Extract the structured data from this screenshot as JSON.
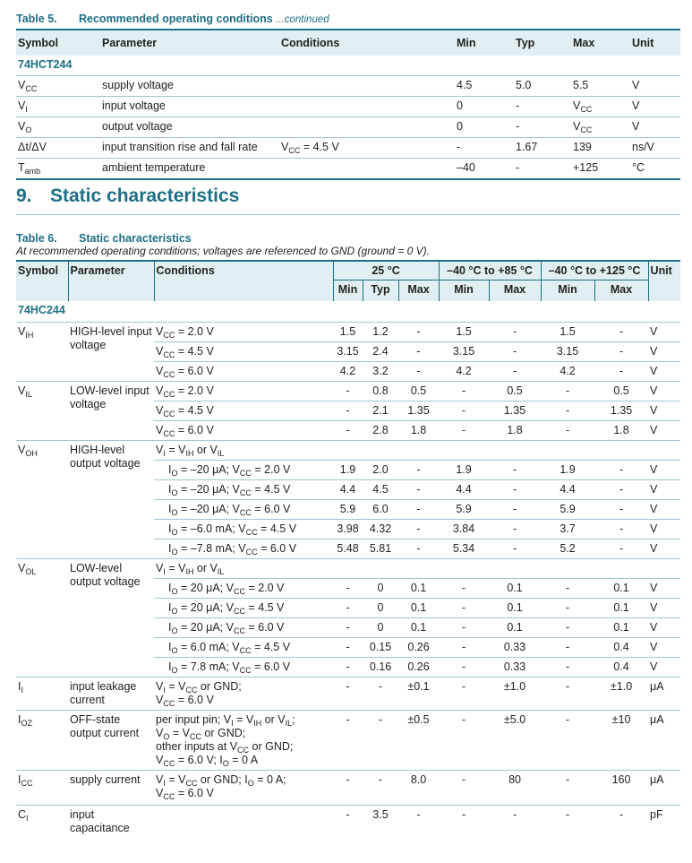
{
  "table5": {
    "number": "Table 5.",
    "title": "Recommended operating conditions",
    "continued": "...continued",
    "headers": [
      "Symbol",
      "Parameter",
      "Conditions",
      "Min",
      "Typ",
      "Max",
      "Unit"
    ],
    "group": "74HCT244",
    "rows": [
      {
        "sym": "V_{CC}",
        "param": "supply voltage",
        "cond": "",
        "min": "4.5",
        "typ": "5.0",
        "max": "5.5",
        "unit": "V"
      },
      {
        "sym": "V_{I}",
        "param": "input voltage",
        "cond": "",
        "min": "0",
        "typ": "-",
        "max": "V_{CC}",
        "unit": "V"
      },
      {
        "sym": "V_{O}",
        "param": "output voltage",
        "cond": "",
        "min": "0",
        "typ": "-",
        "max": "V_{CC}",
        "unit": "V"
      },
      {
        "sym": "Δt/ΔV",
        "param": "input transition rise and fall rate",
        "cond": "V_{CC} = 4.5 V",
        "min": "-",
        "typ": "1.67",
        "max": "139",
        "unit": "ns/V"
      },
      {
        "sym": "T_{amb}",
        "param": "ambient temperature",
        "cond": "",
        "min": "–40",
        "typ": "-",
        "max": "+125",
        "unit": "°C"
      }
    ]
  },
  "section": {
    "number": "9.",
    "title": "Static characteristics"
  },
  "table6": {
    "number": "Table 6.",
    "title": "Static characteristics",
    "note": "At recommended operating conditions; voltages are referenced to GND (ground = 0 V).",
    "headers": {
      "symbol": "Symbol",
      "parameter": "Parameter",
      "conditions": "Conditions",
      "t25": "25 °C",
      "t85": "–40 °C to +85 °C",
      "t125": "–40 °C to +125 °C",
      "unit": "Unit",
      "min": "Min",
      "typ": "Typ",
      "max": "Max"
    },
    "group": "74HC244",
    "blocks": [
      {
        "sym": "V_{IH}",
        "param": "HIGH-level input voltage",
        "rows": [
          {
            "cond": "V_{CC} = 2.0 V",
            "v": [
              "1.5",
              "1.2",
              "-",
              "1.5",
              "-",
              "1.5",
              "-"
            ],
            "unit": "V"
          },
          {
            "cond": "V_{CC} = 4.5 V",
            "v": [
              "3.15",
              "2.4",
              "-",
              "3.15",
              "-",
              "3.15",
              "-"
            ],
            "unit": "V"
          },
          {
            "cond": "V_{CC} = 6.0 V",
            "v": [
              "4.2",
              "3.2",
              "-",
              "4.2",
              "-",
              "4.2",
              "-"
            ],
            "unit": "V"
          }
        ]
      },
      {
        "sym": "V_{IL}",
        "param": "LOW-level input voltage",
        "rows": [
          {
            "cond": "V_{CC} = 2.0 V",
            "v": [
              "-",
              "0.8",
              "0.5",
              "-",
              "0.5",
              "-",
              "0.5"
            ],
            "unit": "V"
          },
          {
            "cond": "V_{CC} = 4.5 V",
            "v": [
              "-",
              "2.1",
              "1.35",
              "-",
              "1.35",
              "-",
              "1.35"
            ],
            "unit": "V"
          },
          {
            "cond": "V_{CC} = 6.0 V",
            "v": [
              "-",
              "2.8",
              "1.8",
              "-",
              "1.8",
              "-",
              "1.8"
            ],
            "unit": "V"
          }
        ]
      },
      {
        "sym": "V_{OH}",
        "param": "HIGH-level output voltage",
        "rows": [
          {
            "cond": "V_{I} = V_{IH} or V_{IL}",
            "v": [
              "",
              "",
              "",
              "",
              "",
              "",
              ""
            ],
            "unit": ""
          },
          {
            "cond": "I_{O} = –20 μA; V_{CC} = 2.0 V",
            "ind": true,
            "v": [
              "1.9",
              "2.0",
              "-",
              "1.9",
              "-",
              "1.9",
              "-"
            ],
            "unit": "V"
          },
          {
            "cond": "I_{O} = –20 μA; V_{CC} = 4.5 V",
            "ind": true,
            "v": [
              "4.4",
              "4.5",
              "-",
              "4.4",
              "-",
              "4.4",
              "-"
            ],
            "unit": "V"
          },
          {
            "cond": "I_{O} = –20 μA; V_{CC} = 6.0 V",
            "ind": true,
            "v": [
              "5.9",
              "6.0",
              "-",
              "5.9",
              "-",
              "5.9",
              "-"
            ],
            "unit": "V"
          },
          {
            "cond": "I_{O} = –6.0 mA; V_{CC} = 4.5 V",
            "ind": true,
            "v": [
              "3.98",
              "4.32",
              "-",
              "3.84",
              "-",
              "3.7",
              "-"
            ],
            "unit": "V"
          },
          {
            "cond": "I_{O} = –7.8 mA; V_{CC} = 6.0 V",
            "ind": true,
            "v": [
              "5.48",
              "5.81",
              "-",
              "5.34",
              "-",
              "5.2",
              "-"
            ],
            "unit": "V"
          }
        ]
      },
      {
        "sym": "V_{OL}",
        "param": "LOW-level output voltage",
        "rows": [
          {
            "cond": "V_{I} = V_{IH} or V_{IL}",
            "v": [
              "",
              "",
              "",
              "",
              "",
              "",
              ""
            ],
            "unit": ""
          },
          {
            "cond": "I_{O} = 20 μA; V_{CC} = 2.0 V",
            "ind": true,
            "v": [
              "-",
              "0",
              "0.1",
              "-",
              "0.1",
              "-",
              "0.1"
            ],
            "unit": "V"
          },
          {
            "cond": "I_{O} = 20 μA; V_{CC} = 4.5 V",
            "ind": true,
            "v": [
              "-",
              "0",
              "0.1",
              "-",
              "0.1",
              "-",
              "0.1"
            ],
            "unit": "V"
          },
          {
            "cond": "I_{O} = 20 μA; V_{CC} = 6.0 V",
            "ind": true,
            "v": [
              "-",
              "0",
              "0.1",
              "-",
              "0.1",
              "-",
              "0.1"
            ],
            "unit": "V"
          },
          {
            "cond": "I_{O} = 6.0 mA; V_{CC} = 4.5 V",
            "ind": true,
            "v": [
              "-",
              "0.15",
              "0.26",
              "-",
              "0.33",
              "-",
              "0.4"
            ],
            "unit": "V"
          },
          {
            "cond": "I_{O} = 7.8 mA; V_{CC} = 6.0 V",
            "ind": true,
            "v": [
              "-",
              "0.16",
              "0.26",
              "-",
              "0.33",
              "-",
              "0.4"
            ],
            "unit": "V"
          }
        ]
      },
      {
        "sym": "I_{I}",
        "param": "input leakage current",
        "rows": [
          {
            "cond": "V_{I} = V_{CC} or GND;\nV_{CC} = 6.0 V",
            "v": [
              "-",
              "-",
              "±0.1",
              "-",
              "±1.0",
              "-",
              "±1.0"
            ],
            "unit": "μA"
          }
        ]
      },
      {
        "sym": "I_{OZ}",
        "param": "OFF-state output current",
        "rows": [
          {
            "cond": "per input pin; V_{I} = V_{IH} or V_{IL};\nV_{O} = V_{CC} or GND;\nother inputs at V_{CC} or GND;\nV_{CC} = 6.0 V; I_{O} = 0 A",
            "v": [
              "-",
              "-",
              "±0.5",
              "-",
              "±5.0",
              "-",
              "±10"
            ],
            "unit": "μA"
          }
        ]
      },
      {
        "sym": "I_{CC}",
        "param": "supply current",
        "rows": [
          {
            "cond": "V_{I} = V_{CC} or GND; I_{O} = 0 A;\nV_{CC} = 6.0 V",
            "v": [
              "-",
              "-",
              "8.0",
              "-",
              "80",
              "-",
              "160"
            ],
            "unit": "μA"
          }
        ]
      },
      {
        "sym": "C_{I}",
        "param": "input capacitance",
        "rows": [
          {
            "cond": "",
            "v": [
              "-",
              "3.5",
              "-",
              "-",
              "-",
              "-",
              "-"
            ],
            "unit": "pF"
          }
        ]
      }
    ]
  }
}
